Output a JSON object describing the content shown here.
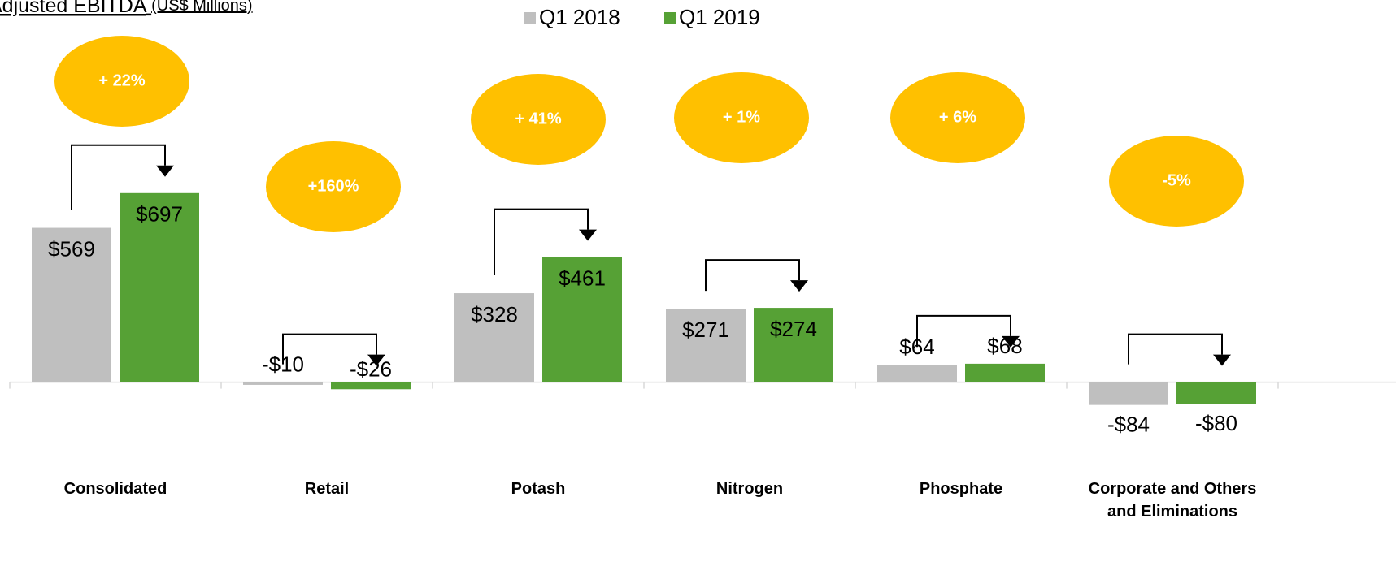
{
  "chart_data": {
    "type": "bar",
    "title": "Adjusted EBITDA",
    "subtitle": "(US$ Millions)",
    "categories": [
      "Consolidated",
      "Retail",
      "Potash",
      "Nitrogen",
      "Phosphate",
      "Corporate and Others and Eliminations"
    ],
    "series": [
      {
        "name": "Q1 2018",
        "color": "#bfbfbf",
        "values": [
          569,
          -10,
          328,
          271,
          64,
          -84
        ],
        "value_labels": [
          "$569",
          "-$10",
          "$328",
          "$271",
          "$64",
          "-$84"
        ]
      },
      {
        "name": "Q1 2019",
        "color": "#56a135",
        "values": [
          697,
          -26,
          461,
          274,
          68,
          -80
        ],
        "value_labels": [
          "$697",
          "-$26",
          "$461",
          "$274",
          "$68",
          "-$80"
        ]
      }
    ],
    "annotations": [
      "+ 22%",
      "+160%",
      "+ 41%",
      "+ 1%",
      "+ 6%",
      "-5%"
    ],
    "annotation_color": "#ffc000",
    "ylim": [
      -200,
      1000
    ],
    "legend": "top"
  }
}
